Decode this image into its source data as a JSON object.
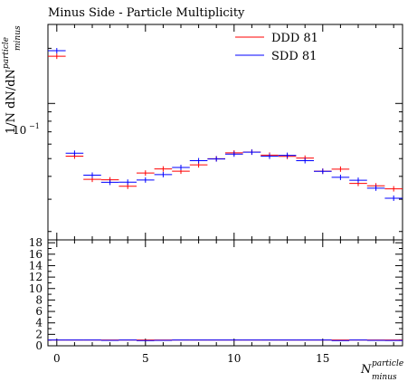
{
  "chart_data": {
    "type": "scatter",
    "title": "Minus Side - Particle Multiplicity",
    "ylabel_main": "1/N dN/dN",
    "ylabel_main_sup": "particle",
    "ylabel_main_sub": "minus",
    "xlabel": "N",
    "xlabel_sup": "particle",
    "xlabel_sub": "minus",
    "log_y": true,
    "ytick_label": "10",
    "ytick_exp": "−1",
    "xlim": [
      -0.5,
      19.5
    ],
    "ylim_main": [
      0.018,
      0.27
    ],
    "ylim_ratio": [
      0,
      18.5
    ],
    "xticks": [
      "0",
      "5",
      "10",
      "15"
    ],
    "ratio_yticks": [
      "0",
      "2",
      "4",
      "6",
      "8",
      "10",
      "12",
      "14",
      "16",
      "18"
    ],
    "x": [
      0,
      1,
      2,
      3,
      4,
      5,
      6,
      7,
      8,
      9,
      10,
      11,
      12,
      13,
      14,
      15,
      16,
      17,
      18,
      19
    ],
    "series": [
      {
        "name": "DDD 81",
        "color": "#ff0000",
        "values": [
          0.181,
          0.0516,
          0.0385,
          0.0383,
          0.0353,
          0.0417,
          0.0439,
          0.0427,
          0.0462,
          0.0499,
          0.0537,
          0.0543,
          0.0522,
          0.0514,
          0.0503,
          0.0427,
          0.0438,
          0.0366,
          0.0355,
          0.0342
        ]
      },
      {
        "name": "SDD 81",
        "color": "#0000ff",
        "values": [
          0.194,
          0.0535,
          0.0406,
          0.0371,
          0.0372,
          0.0382,
          0.0409,
          0.0447,
          0.0487,
          0.0498,
          0.0529,
          0.0542,
          0.0515,
          0.0521,
          0.0487,
          0.0426,
          0.0395,
          0.0381,
          0.0345,
          0.0304
        ]
      }
    ],
    "ratio_values": [
      1.0,
      1.0,
      1.0,
      0.94,
      1.0,
      0.9,
      0.94,
      1.0,
      1.0,
      1.0,
      1.0,
      1.0,
      1.0,
      1.0,
      1.0,
      1.0,
      0.9,
      1.0,
      0.95,
      0.92
    ],
    "legend_position": "top-right"
  }
}
